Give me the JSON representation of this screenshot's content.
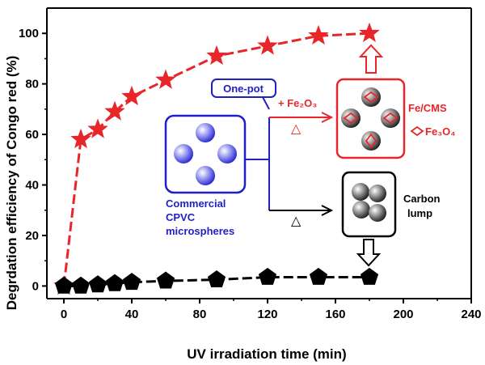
{
  "chart_data": {
    "type": "line",
    "xlabel": "UV irradiation time (min)",
    "ylabel": "Degrdation efficiency of Congo red (%)",
    "xlim": [
      -10,
      240
    ],
    "ylim": [
      -5,
      110
    ],
    "x_ticks": [
      0,
      40,
      80,
      120,
      160,
      200,
      240
    ],
    "y_ticks": [
      0,
      20,
      40,
      60,
      80,
      100
    ],
    "grid": false,
    "series": [
      {
        "marker": "star",
        "color": "#e8262a",
        "x": [
          0,
          10,
          20,
          30,
          40,
          60,
          90,
          120,
          150,
          180
        ],
        "y": [
          0,
          58,
          62,
          69,
          75,
          81.5,
          91,
          95,
          99,
          100
        ]
      },
      {
        "marker": "pentagon",
        "color": "#000000",
        "x": [
          0,
          10,
          20,
          30,
          40,
          60,
          90,
          120,
          150,
          180
        ],
        "y": [
          0,
          0,
          0.5,
          1,
          1.5,
          2,
          2.5,
          3.5,
          3.5,
          3.5
        ]
      }
    ],
    "annotations": {
      "one_pot": "One-pot",
      "fe2o3": "+ Fe₂O₃",
      "fe_cms": "Fe/CMS",
      "fe3o4": "Fe₃O₄",
      "commercial": [
        "Commercial",
        "CPVC",
        "microspheres"
      ],
      "carbon": [
        "Carbon",
        "lump"
      ],
      "red_triangle": "△",
      "black_triangle": "△"
    }
  },
  "colors": {
    "red": "#e8262a",
    "blue": "#1f1fc8",
    "black": "#000000"
  }
}
